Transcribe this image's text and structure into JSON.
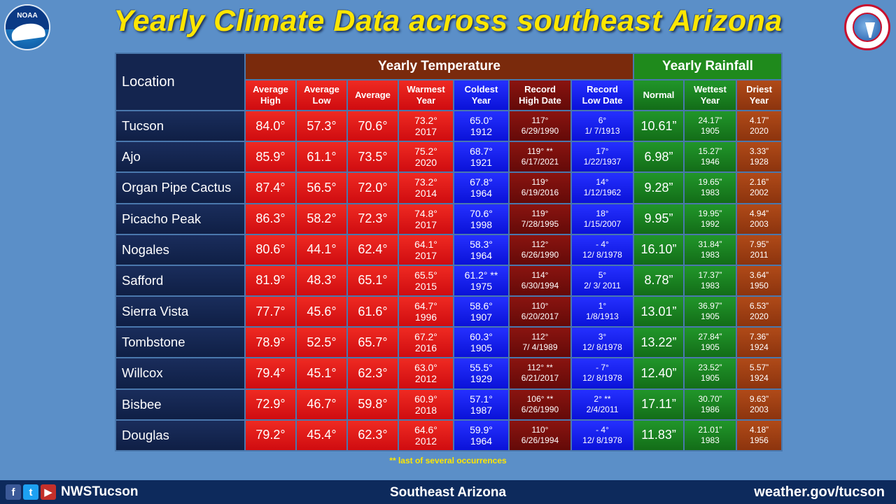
{
  "title": "Yearly Climate Data across southeast Arizona",
  "logos": {
    "noaa": "NOAA"
  },
  "headers": {
    "location": "Location",
    "temp_group": "Yearly  Temperature",
    "rain_group": "Yearly  Rainfall",
    "avg_high": [
      "Average",
      "High"
    ],
    "avg_low": [
      "Average",
      "Low"
    ],
    "average": "Average",
    "warmest": [
      "Warmest",
      "Year"
    ],
    "coldest": [
      "Coldest",
      "Year"
    ],
    "rec_high": [
      "Record",
      "High Date"
    ],
    "rec_low": [
      "Record",
      "Low Date"
    ],
    "normal": "Normal",
    "wettest": [
      "Wettest",
      "Year"
    ],
    "driest": [
      "Driest",
      "Year"
    ]
  },
  "rows": [
    {
      "loc": "Tucson",
      "hi": "84.0°",
      "lo": "57.3°",
      "avg": "70.6°",
      "warm": [
        "73.2°",
        "2017"
      ],
      "cold": [
        "65.0°",
        "1912"
      ],
      "rh": [
        "117°",
        "6/29/1990"
      ],
      "rl": [
        "6°",
        "1/ 7/1913"
      ],
      "norm": "10.61”",
      "wet": [
        "24.17”",
        "1905"
      ],
      "dry": [
        "4.17”",
        "2020"
      ]
    },
    {
      "loc": "Ajo",
      "hi": "85.9°",
      "lo": "61.1°",
      "avg": "73.5°",
      "warm": [
        "75.2°",
        "2020"
      ],
      "cold": [
        "68.7°",
        "1921"
      ],
      "rh": [
        "119° **",
        "6/17/2021"
      ],
      "rl": [
        "17°",
        "1/22/1937"
      ],
      "norm": "6.98”",
      "wet": [
        "15.27”",
        "1946"
      ],
      "dry": [
        "3.33”",
        "1928"
      ]
    },
    {
      "loc": "Organ Pipe Cactus",
      "hi": "87.4°",
      "lo": "56.5°",
      "avg": "72.0°",
      "warm": [
        "73.2°",
        "2014"
      ],
      "cold": [
        "67.8°",
        "1964"
      ],
      "rh": [
        "119°",
        "6/19/2016"
      ],
      "rl": [
        "14°",
        "1/12/1962"
      ],
      "norm": "9.28”",
      "wet": [
        "19.65”",
        "1983"
      ],
      "dry": [
        "2.16”",
        "2002"
      ]
    },
    {
      "loc": "Picacho Peak",
      "hi": "86.3°",
      "lo": "58.2°",
      "avg": "72.3°",
      "warm": [
        "74.8°",
        "2017"
      ],
      "cold": [
        "70.6°",
        "1998"
      ],
      "rh": [
        "119°",
        "7/28/1995"
      ],
      "rl": [
        "18°",
        "1/15/2007"
      ],
      "norm": "9.95”",
      "wet": [
        "19.95”",
        "1992"
      ],
      "dry": [
        "4.94”",
        "2003"
      ]
    },
    {
      "loc": "Nogales",
      "hi": "80.6°",
      "lo": "44.1°",
      "avg": "62.4°",
      "warm": [
        "64.1°",
        "2017"
      ],
      "cold": [
        "58.3°",
        "1964"
      ],
      "rh": [
        "112°",
        "6/26/1990"
      ],
      "rl": [
        "- 4°",
        "12/ 8/1978"
      ],
      "norm": "16.10”",
      "wet": [
        "31.84”",
        "1983"
      ],
      "dry": [
        "7.95”",
        "2011"
      ]
    },
    {
      "loc": "Safford",
      "hi": "81.9°",
      "lo": "48.3°",
      "avg": "65.1°",
      "warm": [
        "65.5°",
        "2015"
      ],
      "cold": [
        "61.2° **",
        "1975"
      ],
      "rh": [
        "114°",
        "6/30/1994"
      ],
      "rl": [
        "5°",
        "2/ 3/ 2011"
      ],
      "norm": "8.78”",
      "wet": [
        "17.37”",
        "1983"
      ],
      "dry": [
        "3.64”",
        "1950"
      ]
    },
    {
      "loc": "Sierra Vista",
      "hi": "77.7°",
      "lo": "45.6°",
      "avg": "61.6°",
      "warm": [
        "64.7°",
        "1996"
      ],
      "cold": [
        "58.6°",
        "1907"
      ],
      "rh": [
        "110°",
        "6/20/2017"
      ],
      "rl": [
        "1°",
        "1/8/1913"
      ],
      "norm": "13.01”",
      "wet": [
        "36.97”",
        "1905"
      ],
      "dry": [
        "6.53”",
        "2020"
      ]
    },
    {
      "loc": "Tombstone",
      "hi": "78.9°",
      "lo": "52.5°",
      "avg": "65.7°",
      "warm": [
        "67.2°",
        "2016"
      ],
      "cold": [
        "60.3°",
        "1905"
      ],
      "rh": [
        "112°",
        "7/ 4/1989"
      ],
      "rl": [
        "3°",
        "12/ 8/1978"
      ],
      "norm": "13.22”",
      "wet": [
        "27.84”",
        "1905"
      ],
      "dry": [
        "7.36”",
        "1924"
      ]
    },
    {
      "loc": "Willcox",
      "hi": "79.4°",
      "lo": "45.1°",
      "avg": "62.3°",
      "warm": [
        "63.0°",
        "2012"
      ],
      "cold": [
        "55.5°",
        "1929"
      ],
      "rh": [
        "112° **",
        "6/21/2017"
      ],
      "rl": [
        "- 7°",
        "12/ 8/1978"
      ],
      "norm": "12.40”",
      "wet": [
        "23.52”",
        "1905"
      ],
      "dry": [
        "5.57”",
        "1924"
      ]
    },
    {
      "loc": "Bisbee",
      "hi": "72.9°",
      "lo": "46.7°",
      "avg": "59.8°",
      "warm": [
        "60.9°",
        "2018"
      ],
      "cold": [
        "57.1°",
        "1987"
      ],
      "rh": [
        "106° **",
        "6/26/1990"
      ],
      "rl": [
        "2° **",
        "2/4/2011"
      ],
      "norm": "17.11”",
      "wet": [
        "30.70”",
        "1986"
      ],
      "dry": [
        "9.63”",
        "2003"
      ]
    },
    {
      "loc": "Douglas",
      "hi": "79.2°",
      "lo": "45.4°",
      "avg": "62.3°",
      "warm": [
        "64.6°",
        "2012"
      ],
      "cold": [
        "59.9°",
        "1964"
      ],
      "rh": [
        "110°",
        "6/26/1994"
      ],
      "rl": [
        "- 4°",
        "12/ 8/1978"
      ],
      "norm": "11.83”",
      "wet": [
        "21.01”",
        "1983"
      ],
      "dry": [
        "4.18”",
        "1956"
      ]
    }
  ],
  "footnote": "** last of several occurrences",
  "footer": {
    "social_icons": [
      "facebook-icon",
      "twitter-icon",
      "youtube-icon"
    ],
    "handle": "NWSTucson",
    "center": "Southeast Arizona",
    "site": "weather.gov/tucson"
  }
}
